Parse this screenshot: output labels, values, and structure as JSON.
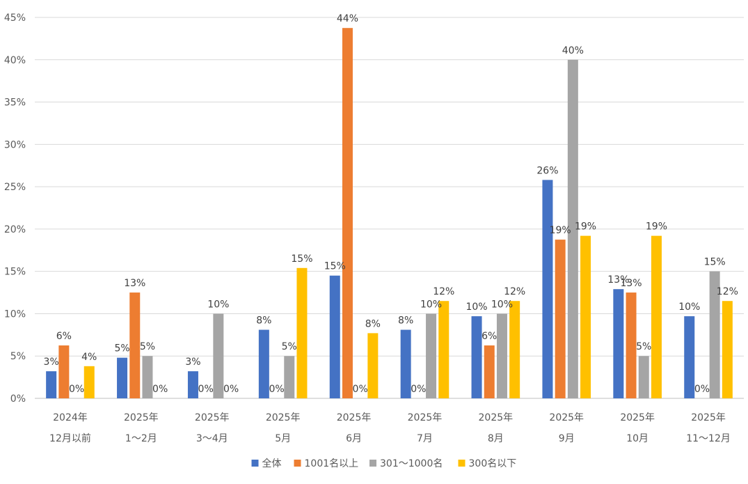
{
  "chart_data": {
    "type": "bar",
    "title": "",
    "xlabel": "",
    "ylabel": "",
    "ylim": [
      0,
      45
    ],
    "y_ticks": [
      0,
      5,
      10,
      15,
      20,
      25,
      30,
      35,
      40,
      45
    ],
    "y_tick_labels": [
      "0%",
      "5%",
      "10%",
      "15%",
      "20%",
      "25%",
      "30%",
      "35%",
      "40%",
      "45%"
    ],
    "grid": true,
    "legend_position": "bottom",
    "categories": [
      {
        "year": "2024年",
        "period": "12月以前"
      },
      {
        "year": "2025年",
        "period": "1～2月"
      },
      {
        "year": "2025年",
        "period": "3～4月"
      },
      {
        "year": "2025年",
        "period": "5月"
      },
      {
        "year": "2025年",
        "period": "6月"
      },
      {
        "year": "2025年",
        "period": "7月"
      },
      {
        "year": "2025年",
        "period": "8月"
      },
      {
        "year": "2025年",
        "period": "9月"
      },
      {
        "year": "2025年",
        "period": "10月"
      },
      {
        "year": "2025年",
        "period": "11～12月"
      }
    ],
    "series": [
      {
        "name": "全体",
        "color": "#4472C4",
        "values": [
          3.2,
          4.8,
          3.2,
          8.1,
          14.5,
          8.1,
          9.7,
          25.8,
          12.9,
          9.7
        ],
        "labels": [
          "3%",
          "5%",
          "3%",
          "8%",
          "15%",
          "8%",
          "10%",
          "26%",
          "13%",
          "10%"
        ]
      },
      {
        "name": "1001名以上",
        "color": "#ED7D31",
        "values": [
          6.25,
          12.5,
          0,
          0,
          43.75,
          0,
          6.25,
          18.75,
          12.5,
          0
        ],
        "labels": [
          "6%",
          "13%",
          "0%",
          "0%",
          "44%",
          "0%",
          "6%",
          "19%",
          "13%",
          "0%"
        ]
      },
      {
        "name": "301～1000名",
        "color": "#A5A5A5",
        "values": [
          0,
          5,
          10,
          5,
          0,
          10,
          10,
          40,
          5,
          15
        ],
        "labels": [
          "0%",
          "5%",
          "10%",
          "5%",
          "0%",
          "10%",
          "10%",
          "40%",
          "5%",
          "15%"
        ]
      },
      {
        "name": "300名以下",
        "color": "#FFC000",
        "values": [
          3.8,
          0,
          0,
          15.4,
          7.7,
          11.5,
          11.5,
          19.2,
          19.2,
          11.5
        ],
        "labels": [
          "4%",
          "0%",
          "0%",
          "15%",
          "8%",
          "12%",
          "12%",
          "19%",
          "19%",
          "12%"
        ]
      }
    ]
  }
}
